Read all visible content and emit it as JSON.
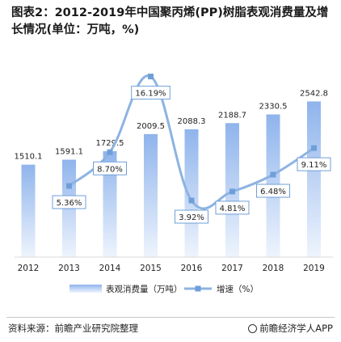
{
  "title": "图表2：2012-2019年中国聚丙烯(PP)树脂表观消费量及增长情况(单位：万吨，%)",
  "footer": {
    "source": "资料来源：前瞻产业研究院整理",
    "brand": "前瞻经济学人APP"
  },
  "colors": {
    "bar_top": "#8fb4ec",
    "bar_bottom": "#eef4fd",
    "line": "#8db3e2",
    "marker": "#6f9fd8",
    "label_box": "#6f9fd8"
  },
  "chart_data": {
    "type": "bar+line",
    "categories": [
      "2012",
      "2013",
      "2014",
      "2015",
      "2016",
      "2017",
      "2018",
      "2019"
    ],
    "series": [
      {
        "name": "表观消费量（万吨）",
        "type": "bar",
        "values": [
          1510.1,
          1591.1,
          1729.5,
          2009.5,
          2088.3,
          2188.7,
          2330.5,
          2542.8
        ],
        "labels": [
          "1510.1",
          "1591.1",
          "1729.5",
          "2009.5",
          "2088.3",
          "2188.7",
          "2330.5",
          "2542.8"
        ]
      },
      {
        "name": "增速（%）",
        "type": "line",
        "values": [
          null,
          5.36,
          8.7,
          16.19,
          3.92,
          4.81,
          6.48,
          9.11
        ],
        "labels": [
          "",
          "5.36%",
          "8.70%",
          "16.19%",
          "3.92%",
          "4.81%",
          "6.48%",
          "9.11%"
        ]
      }
    ],
    "y_range": [
      0,
      2800
    ],
    "y2_range": [
      2,
      17.2
    ],
    "legend_position": "bottom",
    "grid": false
  }
}
